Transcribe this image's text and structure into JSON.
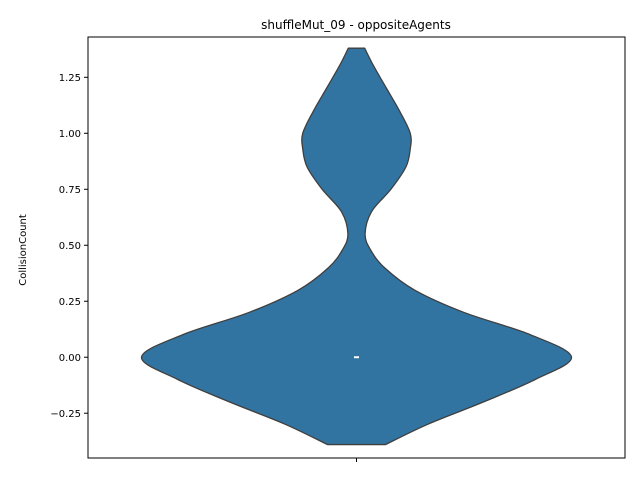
{
  "chart_data": {
    "type": "violin",
    "title": "shuffleMut_09 - oppositeAgents",
    "xlabel": "",
    "ylabel": "CollisionCount",
    "ylim": [
      -0.45,
      1.43
    ],
    "yticks": [
      -0.25,
      0.0,
      0.25,
      0.5,
      0.75,
      1.0,
      1.25
    ],
    "ytick_labels": [
      "−0.25",
      "0.00",
      "0.25",
      "0.50",
      "0.75",
      "1.00",
      "1.25"
    ],
    "xticks": [
      ""
    ],
    "fill_color": "#3274a1",
    "edge_color": "#3f3f3f",
    "median_color": "#ffffff",
    "grid": false,
    "violin": {
      "median": 0.0,
      "density_profile": [
        {
          "y": -0.39,
          "half_width": 0.135
        },
        {
          "y": -0.3,
          "half_width": 0.33
        },
        {
          "y": -0.2,
          "half_width": 0.59
        },
        {
          "y": -0.1,
          "half_width": 0.83
        },
        {
          "y": 0.0,
          "half_width": 1.0
        },
        {
          "y": 0.1,
          "half_width": 0.81
        },
        {
          "y": 0.2,
          "half_width": 0.5
        },
        {
          "y": 0.3,
          "half_width": 0.27
        },
        {
          "y": 0.4,
          "half_width": 0.13
        },
        {
          "y": 0.48,
          "half_width": 0.065
        },
        {
          "y": 0.55,
          "half_width": 0.04
        },
        {
          "y": 0.65,
          "half_width": 0.07
        },
        {
          "y": 0.75,
          "half_width": 0.16
        },
        {
          "y": 0.85,
          "half_width": 0.23
        },
        {
          "y": 0.93,
          "half_width": 0.25
        },
        {
          "y": 1.0,
          "half_width": 0.25
        },
        {
          "y": 1.1,
          "half_width": 0.2
        },
        {
          "y": 1.2,
          "half_width": 0.14
        },
        {
          "y": 1.3,
          "half_width": 0.08
        },
        {
          "y": 1.38,
          "half_width": 0.038
        }
      ]
    }
  }
}
